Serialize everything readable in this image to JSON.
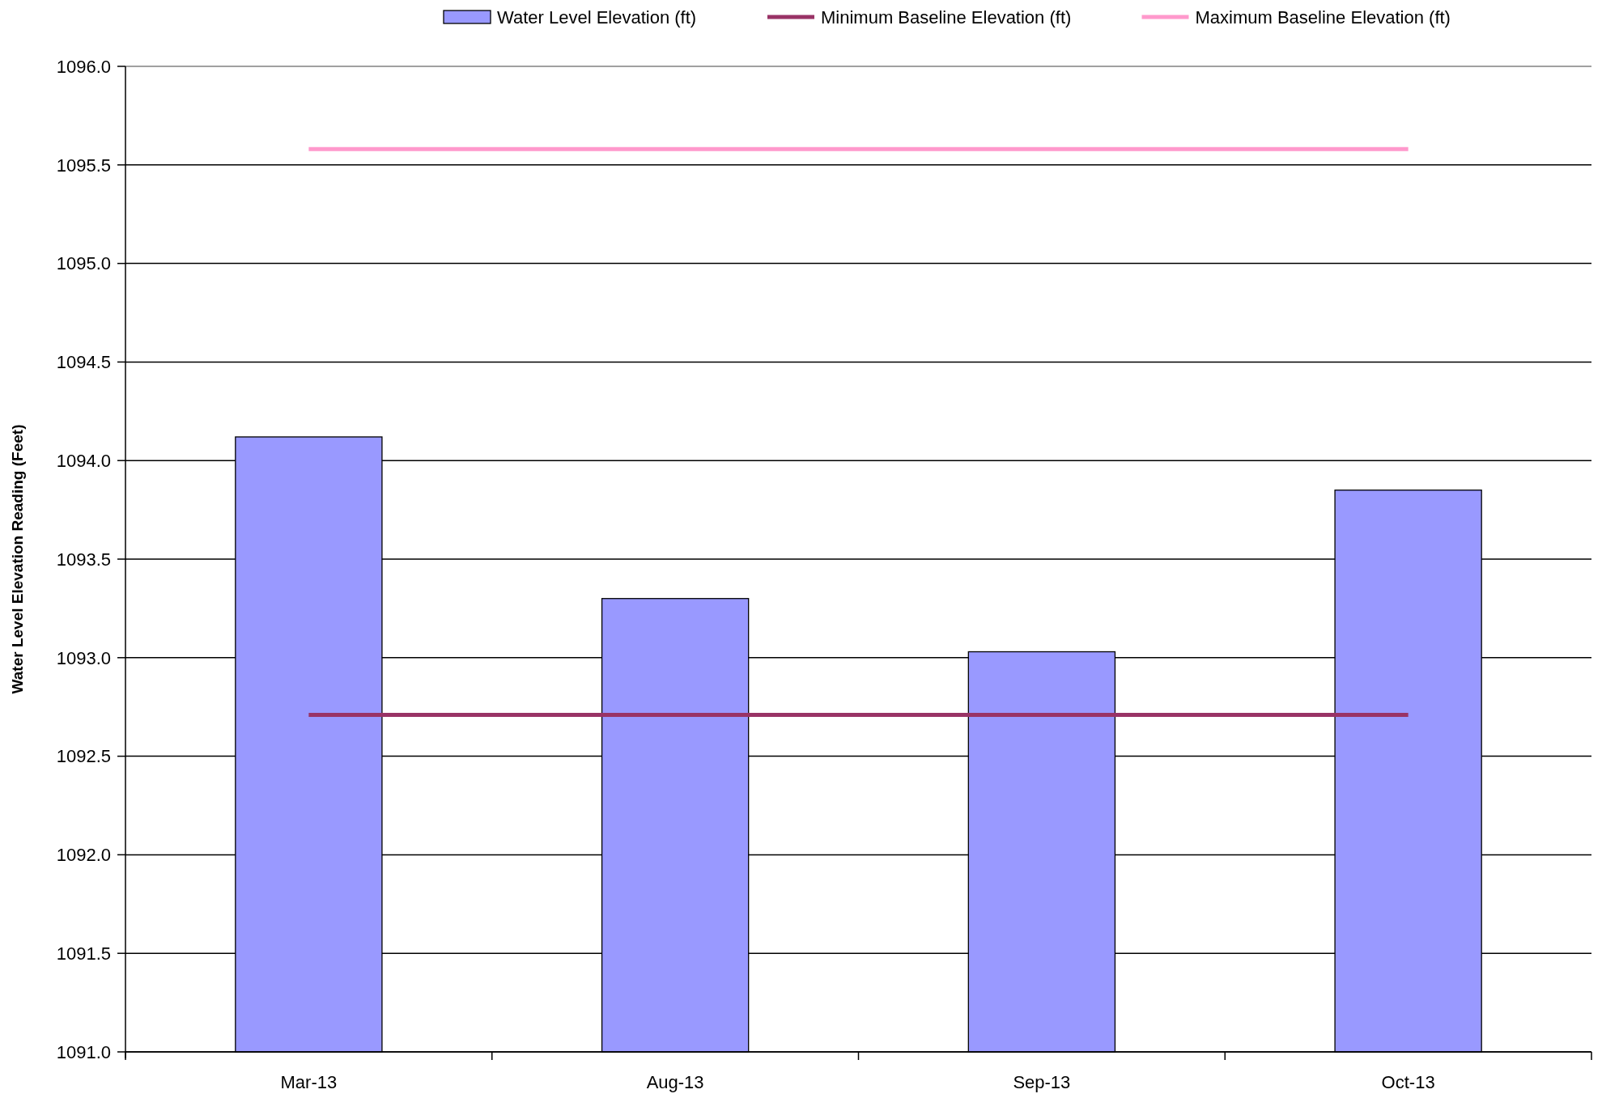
{
  "chart_data": {
    "type": "bar",
    "ylabel": "Water Level Elevation Reading (Feet)",
    "categories": [
      "Mar-13",
      "Aug-13",
      "Sep-13",
      "Oct-13"
    ],
    "series": [
      {
        "name": "Water Level Elevation (ft)",
        "color": "#9999ff",
        "values": [
          1094.12,
          1093.3,
          1093.03,
          1093.85
        ]
      },
      {
        "name": "Minimum Baseline Elevation (ft)",
        "type": "line",
        "color": "#993366",
        "values": [
          1092.71,
          1092.71,
          1092.71,
          1092.71
        ]
      },
      {
        "name": "Maximum Baseline Elevation (ft)",
        "type": "line",
        "color": "#ff99cc",
        "values": [
          1095.58,
          1095.58,
          1095.58,
          1095.58
        ]
      }
    ],
    "ylim": [
      1091,
      1096
    ],
    "yticks": [
      {
        "value": 1091,
        "label": "1091.0"
      },
      {
        "value": 1091.5,
        "label": "1091.5"
      },
      {
        "value": 1092,
        "label": "1092.0"
      },
      {
        "value": 1092.5,
        "label": "1092.5"
      },
      {
        "value": 1093,
        "label": "1093.0"
      },
      {
        "value": 1093.5,
        "label": "1093.5"
      },
      {
        "value": 1094,
        "label": "1094.0"
      },
      {
        "value": 1094.5,
        "label": "1094.5"
      },
      {
        "value": 1095,
        "label": "1095.0"
      },
      {
        "value": 1095.5,
        "label": "1095.5"
      },
      {
        "value": 1096,
        "label": "1096.0"
      }
    ],
    "grid": "y",
    "legend": "top",
    "marker": "none"
  }
}
